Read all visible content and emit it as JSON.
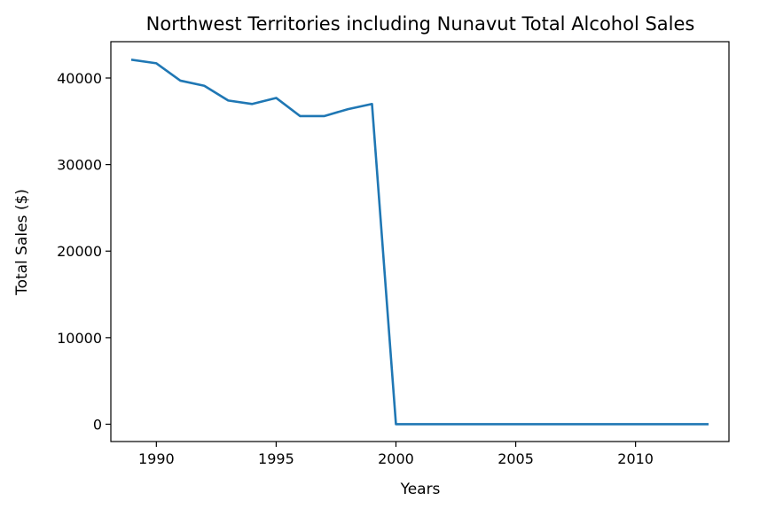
{
  "chart_data": {
    "type": "line",
    "title": "Northwest Territories including Nunavut Total Alcohol Sales",
    "xlabel": "Years",
    "ylabel": "Total Sales ($)",
    "xlim": [
      1988.1,
      2013.9
    ],
    "ylim": [
      -2000,
      44200
    ],
    "xticks": [
      1990,
      1995,
      2000,
      2005,
      2010
    ],
    "yticks": [
      0,
      10000,
      20000,
      30000,
      40000
    ],
    "grid": false,
    "legend": "none",
    "line_color": "#1f77b4",
    "series": [
      {
        "x": [
          1989,
          1990,
          1991,
          1992,
          1993,
          1994,
          1995,
          1996,
          1997,
          1998,
          1999,
          2000,
          2001,
          2002,
          2003,
          2004,
          2005,
          2006,
          2007,
          2008,
          2009,
          2010,
          2011,
          2012,
          2013
        ],
        "values": [
          42100,
          41700,
          39700,
          39100,
          37400,
          37000,
          37700,
          35600,
          35600,
          36400,
          37000,
          0,
          0,
          0,
          0,
          0,
          0,
          0,
          0,
          0,
          0,
          0,
          0,
          0,
          0
        ]
      }
    ]
  }
}
